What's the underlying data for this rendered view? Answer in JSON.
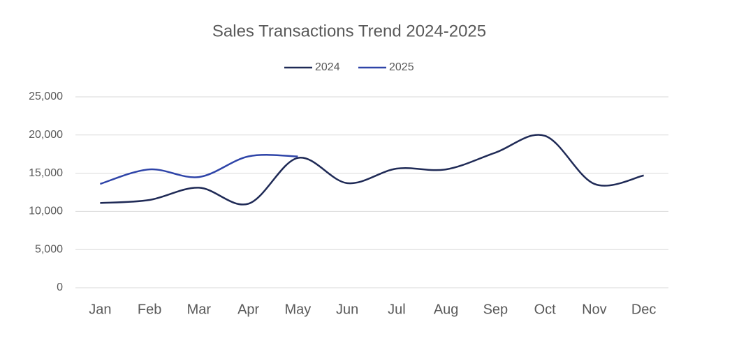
{
  "chart_data": {
    "type": "line",
    "title": "Sales Transactions Trend 2024-2025",
    "categories": [
      "Jan",
      "Feb",
      "Mar",
      "Apr",
      "May",
      "Jun",
      "Jul",
      "Aug",
      "Sep",
      "Oct",
      "Nov",
      "Dec"
    ],
    "series": [
      {
        "name": "2024",
        "color": "#1f2a56",
        "values": [
          11100,
          11500,
          13100,
          11000,
          17000,
          13700,
          15600,
          15500,
          17700,
          19900,
          13600,
          14700
        ]
      },
      {
        "name": "2025",
        "color": "#2e44a8",
        "values": [
          13600,
          15500,
          14500,
          17200,
          17200,
          null,
          null,
          null,
          null,
          null,
          null,
          null
        ]
      }
    ],
    "ylim": [
      0,
      25000
    ],
    "yticks": [
      0,
      {
        "value": 5000,
        "label": "5,000"
      },
      {
        "value": 10000,
        "label": "10,000"
      },
      {
        "value": 15000,
        "label": "15,000"
      },
      {
        "value": 20000,
        "label": "20,000"
      },
      {
        "value": 25000,
        "label": "25,000"
      }
    ],
    "grid": true,
    "smooth": true,
    "legend": "top"
  }
}
